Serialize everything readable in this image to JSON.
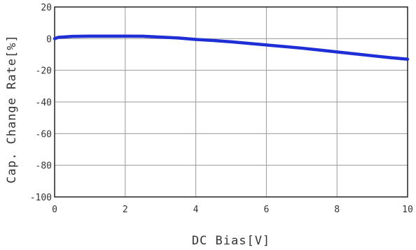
{
  "chart_data": {
    "type": "line",
    "xlabel": "DC Bias[V]",
    "ylabel": "Cap. Change Rate[%]",
    "xlim": [
      0,
      10
    ],
    "ylim": [
      -100,
      20
    ],
    "x_ticks": [
      "0",
      "2",
      "4",
      "6",
      "8",
      "10"
    ],
    "y_ticks": [
      "20",
      "0",
      "-20",
      "-40",
      "-60",
      "-80",
      "-100"
    ],
    "grid": true,
    "series": [
      {
        "color": "#1f2fd6",
        "x": [
          0,
          0.1,
          0.5,
          1,
          1.5,
          2,
          2.5,
          3,
          3.5,
          4,
          4.5,
          5,
          5.5,
          6,
          6.5,
          7,
          7.5,
          8,
          8.5,
          9,
          9.5,
          10
        ],
        "y": [
          0,
          0.8,
          1.4,
          1.6,
          1.6,
          1.6,
          1.5,
          1.0,
          0.4,
          -0.5,
          -1.2,
          -2.0,
          -3.0,
          -4.0,
          -5.0,
          -6.0,
          -7.2,
          -8.4,
          -9.6,
          -10.8,
          -12.0,
          -13.0
        ]
      }
    ]
  }
}
